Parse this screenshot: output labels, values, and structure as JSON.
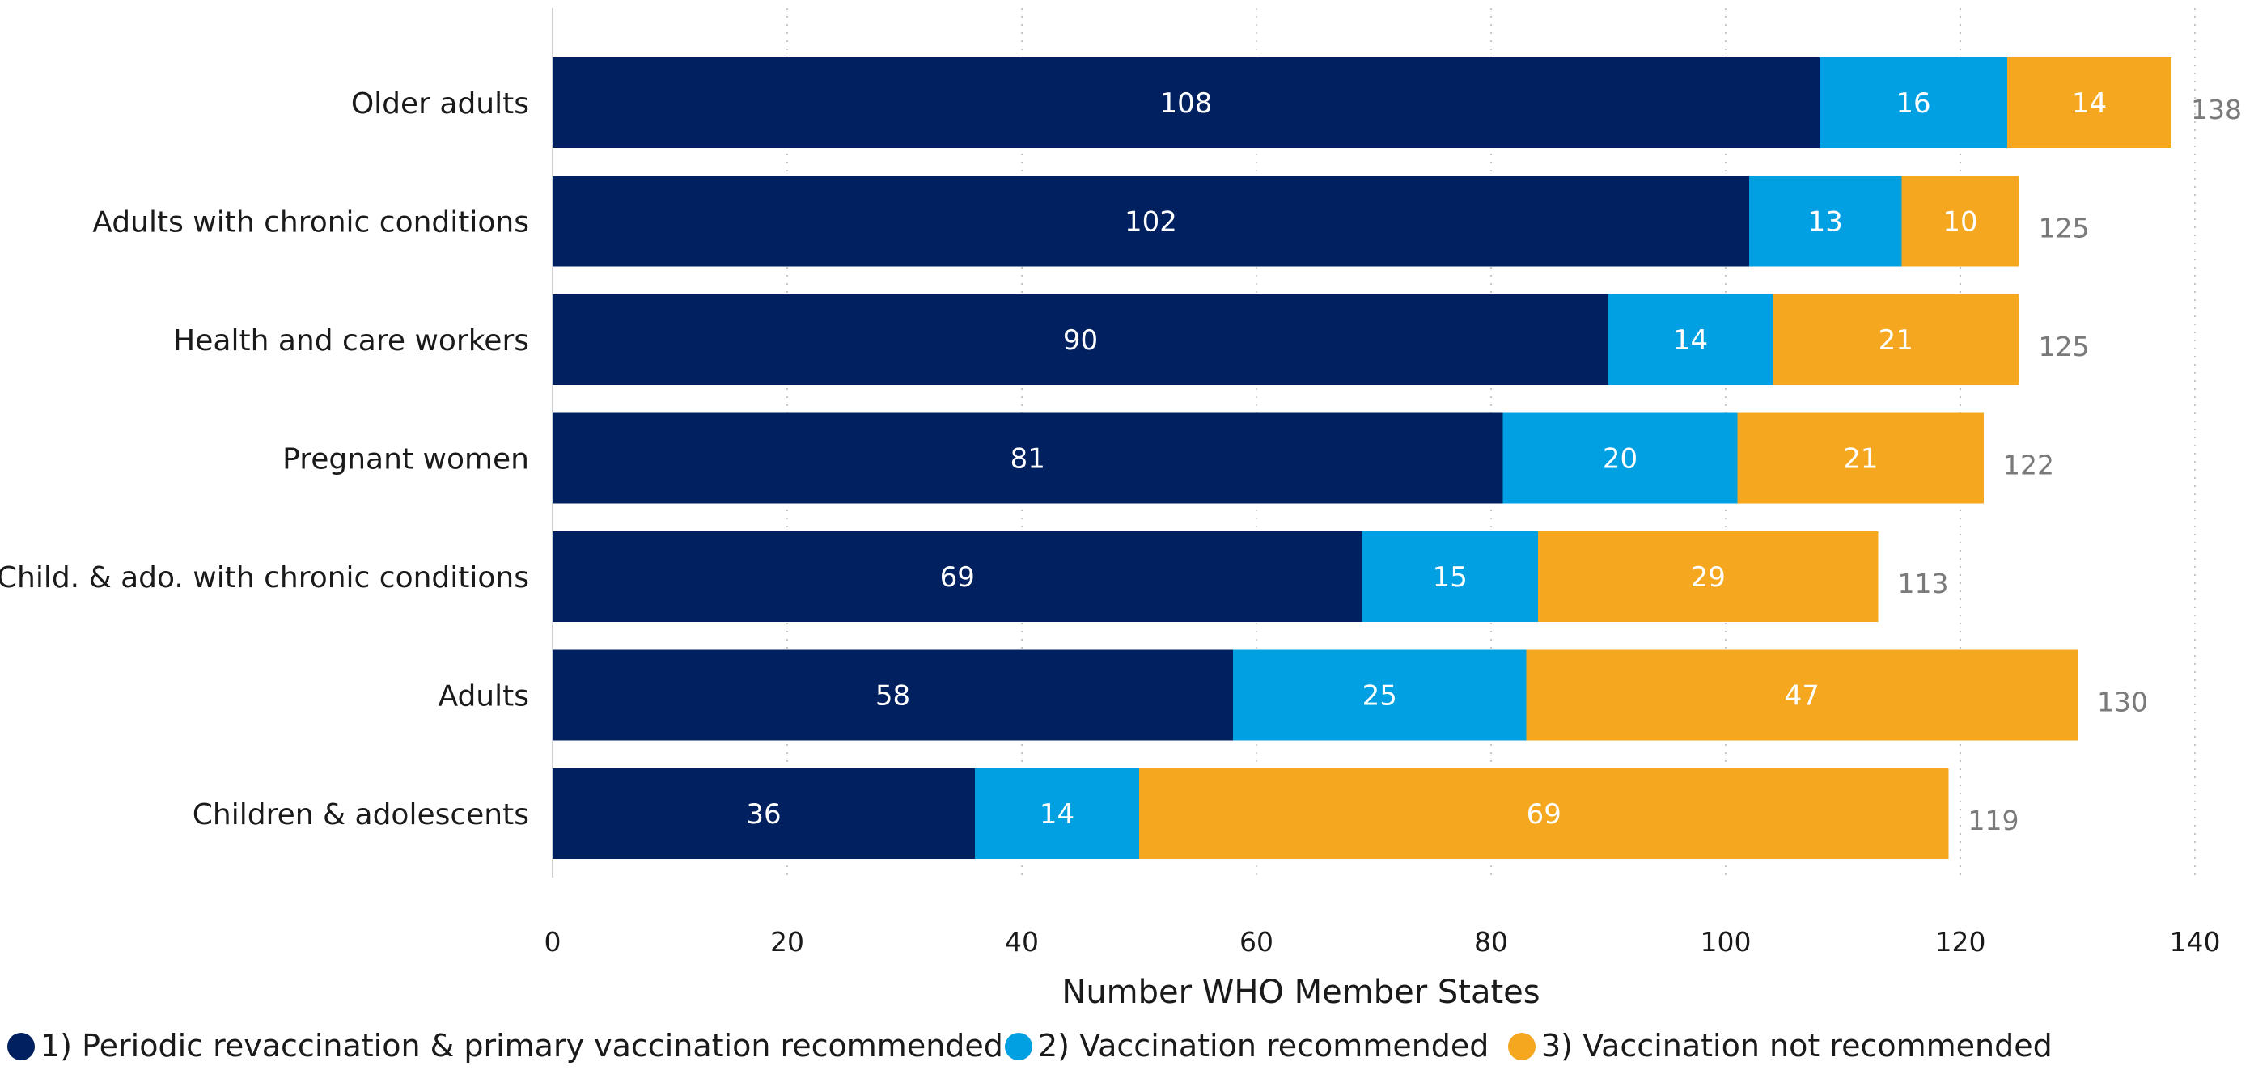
{
  "chart_data": {
    "type": "bar",
    "orientation": "horizontal",
    "stacked": true,
    "title": "",
    "xlabel": "Number WHO Member States",
    "ylabel": "",
    "xlim": [
      0,
      140
    ],
    "xticks": [
      0,
      20,
      40,
      60,
      80,
      100,
      120,
      140
    ],
    "grid": true,
    "legend_position": "bottom-left",
    "categories": [
      "Older adults",
      "Adults with chronic conditions",
      "Health and care workers",
      "Pregnant women",
      "Child. & ado. with chronic conditions",
      "Adults",
      "Children & adolescents"
    ],
    "series": [
      {
        "name": "1) Periodic revaccination & primary vaccination recommended",
        "color": "#002060",
        "values": [
          108,
          102,
          90,
          81,
          69,
          58,
          36
        ]
      },
      {
        "name": "2) Vaccination recommended",
        "color": "#00A0E3",
        "values": [
          16,
          13,
          14,
          20,
          15,
          25,
          14
        ]
      },
      {
        "name": "3) Vaccination not recommended",
        "color": "#F4A71F",
        "values": [
          14,
          10,
          21,
          21,
          29,
          47,
          69
        ]
      }
    ],
    "totals": [
      138,
      125,
      125,
      122,
      113,
      130,
      119
    ]
  }
}
